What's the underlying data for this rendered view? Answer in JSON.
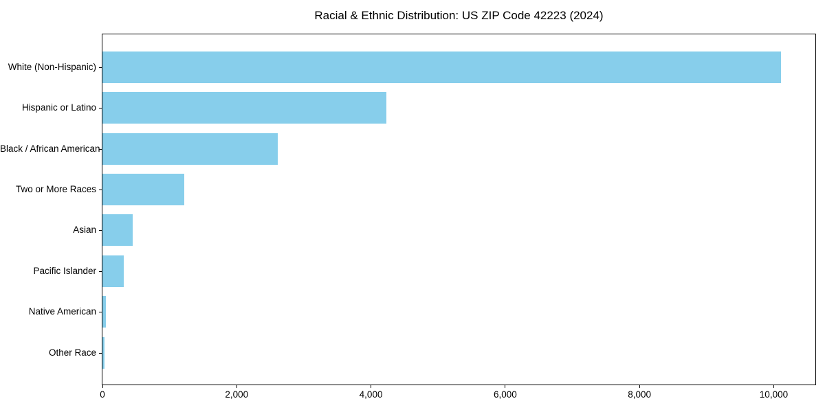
{
  "figure": {
    "background": "#ffffff",
    "text_color": "#000000",
    "spine_color": "#000000"
  },
  "chart_data": {
    "type": "bar",
    "orientation": "horizontal",
    "title": "Racial & Ethnic Distribution: US ZIP Code 42223 (2024)",
    "categories": [
      "White (Non-Hispanic)",
      "Hispanic or Latino",
      "Black / African American",
      "Two or More Races",
      "Asian",
      "Pacific Islander",
      "Native American",
      "Other Race"
    ],
    "values": [
      10110,
      4230,
      2610,
      1220,
      450,
      320,
      50,
      30
    ],
    "bar_color": "#87CEEB",
    "xlabel": "",
    "ylabel": "",
    "xlim": [
      0,
      10620
    ],
    "x_ticks": [
      0,
      2000,
      4000,
      6000,
      8000,
      10000
    ],
    "x_tick_labels": [
      "0",
      "2,000",
      "4,000",
      "6,000",
      "8,000",
      "10,000"
    ],
    "grid": false,
    "legend_position": "none"
  }
}
